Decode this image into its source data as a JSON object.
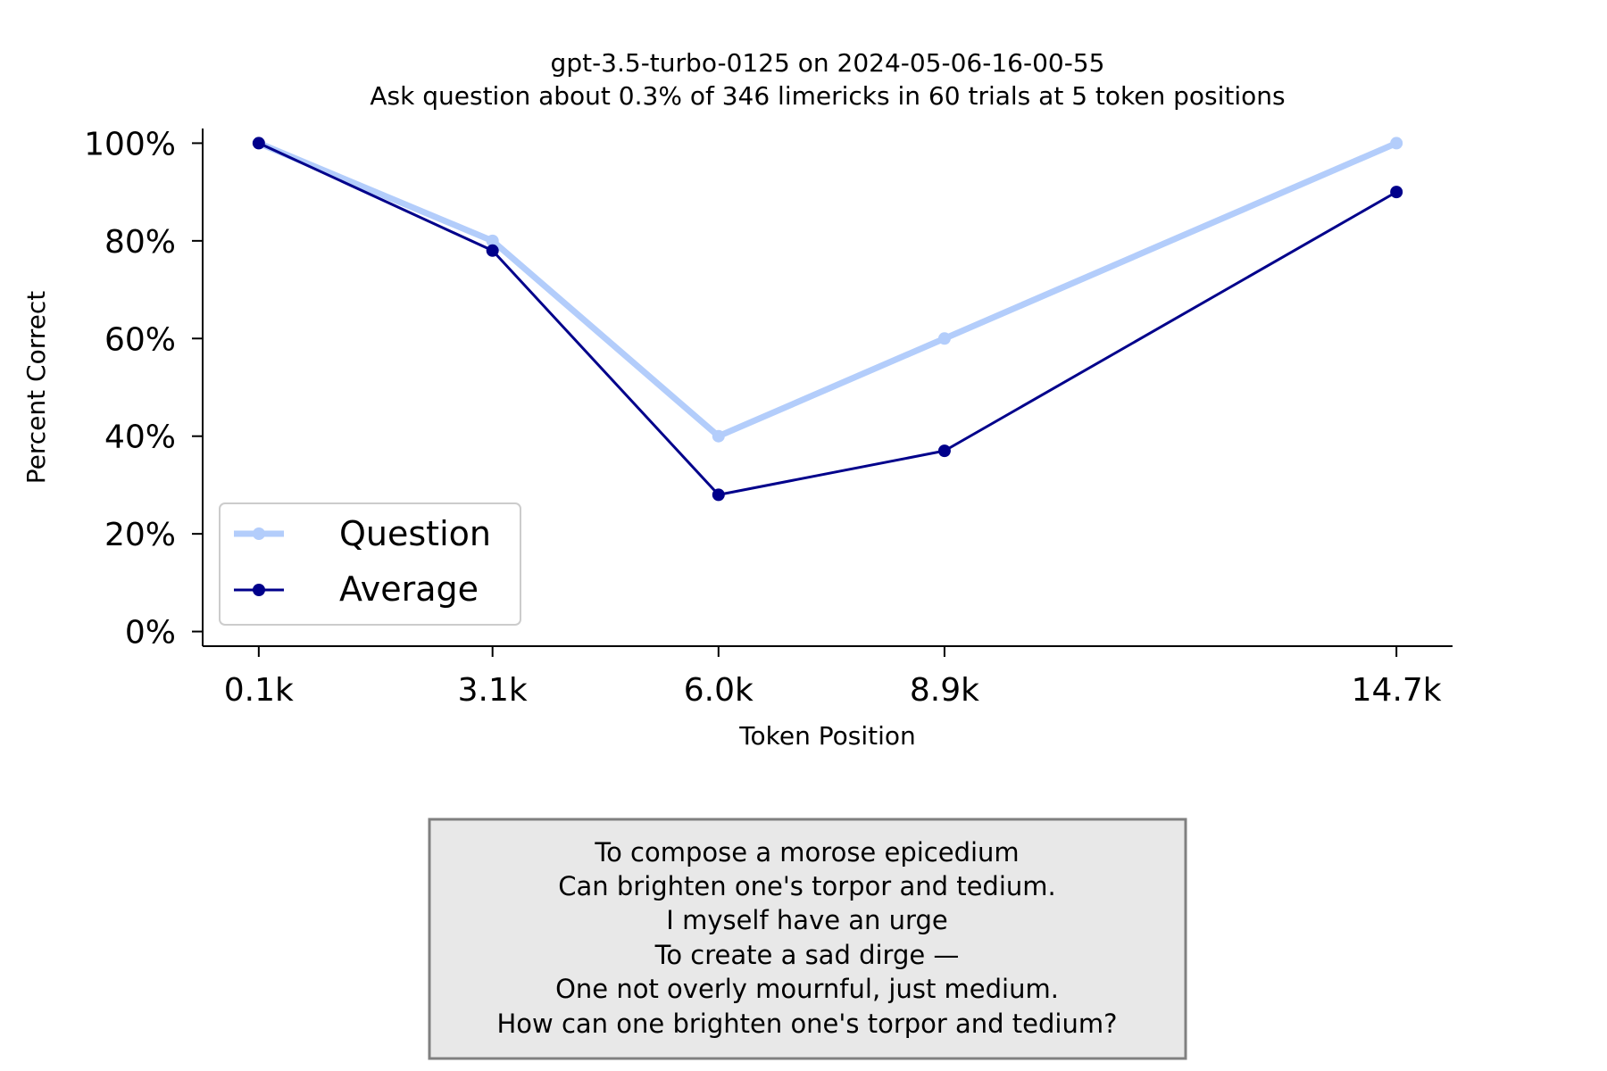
{
  "chart_data": {
    "type": "line",
    "title": "gpt-3.5-turbo-0125 on 2024-05-06-16-00-55",
    "subtitle": "Ask question about 0.3% of 346 limericks in 60 trials at 5 token positions",
    "xlabel": "Token Position",
    "ylabel": "Percent Correct",
    "x": [
      0.1,
      3.1,
      6.0,
      8.9,
      14.7
    ],
    "x_tick_labels": [
      "0.1k",
      "3.1k",
      "6.0k",
      "8.9k",
      "14.7k"
    ],
    "y_ticks": [
      0,
      20,
      40,
      60,
      80,
      100
    ],
    "y_tick_labels": [
      "0%",
      "20%",
      "40%",
      "60%",
      "80%",
      "100%"
    ],
    "ylim": [
      -3,
      103
    ],
    "xlim": [
      -0.62,
      15.42
    ],
    "grid": false,
    "legend_position": "lower-left",
    "series": [
      {
        "name": "Question",
        "color": "#b3cdfb",
        "values": [
          100,
          80,
          40,
          60,
          100
        ]
      },
      {
        "name": "Average",
        "color": "#00008b",
        "values": [
          100,
          78,
          28,
          37,
          90
        ]
      }
    ]
  },
  "annotation": {
    "lines": [
      "To compose a morose epicedium",
      "Can brighten one's torpor and tedium.",
      "I myself have an urge",
      "To create a sad dirge —",
      "One not overly mournful, just medium.",
      "How can one brighten one's torpor and tedium?"
    ],
    "background": "#e8e8e8",
    "border": "#808080"
  }
}
